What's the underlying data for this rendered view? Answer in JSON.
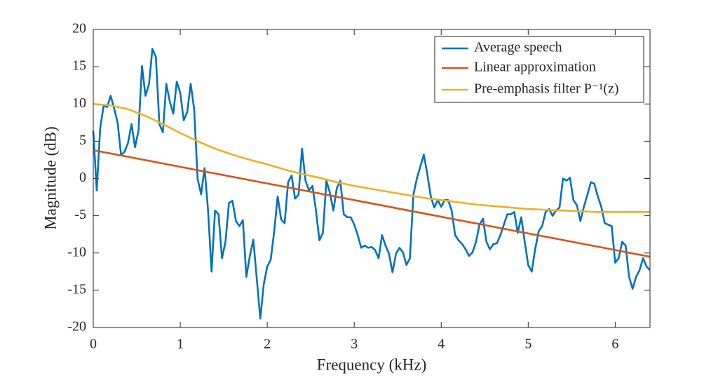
{
  "chart_data": {
    "type": "line",
    "xlabel": "Frequency (kHz)",
    "ylabel": "Magnitude (dB)",
    "xlim": [
      0,
      6.4
    ],
    "xticks": [
      0,
      1,
      2,
      3,
      4,
      5,
      6
    ],
    "ylim": [
      -20,
      20
    ],
    "yticks": [
      -20,
      -15,
      -10,
      -5,
      0,
      5,
      10,
      15,
      20
    ],
    "legend": "upper right",
    "series": [
      {
        "name": "Average speech",
        "color": "#0072bd",
        "x": [
          0,
          0.04,
          0.08,
          0.12,
          0.16,
          0.2,
          0.24,
          0.28,
          0.32,
          0.36,
          0.4,
          0.44,
          0.48,
          0.52,
          0.56,
          0.6,
          0.64,
          0.68,
          0.72,
          0.76,
          0.8,
          0.84,
          0.88,
          0.92,
          0.96,
          1,
          1.04,
          1.08,
          1.12,
          1.16,
          1.2,
          1.24,
          1.28,
          1.32,
          1.36,
          1.4,
          1.44,
          1.48,
          1.52,
          1.56,
          1.6,
          1.64,
          1.68,
          1.72,
          1.76,
          1.8,
          1.84,
          1.88,
          1.92,
          1.96,
          2,
          2.04,
          2.08,
          2.12,
          2.16,
          2.2,
          2.24,
          2.28,
          2.32,
          2.36,
          2.4,
          2.44,
          2.48,
          2.52,
          2.56,
          2.6,
          2.64,
          2.68,
          2.72,
          2.76,
          2.8,
          2.84,
          2.88,
          2.92,
          2.96,
          3,
          3.04,
          3.08,
          3.12,
          3.16,
          3.2,
          3.24,
          3.28,
          3.32,
          3.36,
          3.4,
          3.44,
          3.48,
          3.52,
          3.56,
          3.6,
          3.64,
          3.68,
          3.72,
          3.76,
          3.8,
          3.84,
          3.88,
          3.92,
          3.96,
          4,
          4.04,
          4.08,
          4.12,
          4.16,
          4.2,
          4.24,
          4.28,
          4.32,
          4.36,
          4.4,
          4.44,
          4.48,
          4.52,
          4.56,
          4.6,
          4.64,
          4.68,
          4.72,
          4.76,
          4.8,
          4.84,
          4.88,
          4.92,
          4.96,
          5,
          5.04,
          5.08,
          5.12,
          5.16,
          5.2,
          5.24,
          5.28,
          5.32,
          5.36,
          5.4,
          5.44,
          5.48,
          5.52,
          5.56,
          5.6,
          5.64,
          5.68,
          5.72,
          5.76,
          5.8,
          5.84,
          5.88,
          5.92,
          5.96,
          6,
          6.04,
          6.08,
          6.12,
          6.16,
          6.2,
          6.24,
          6.28,
          6.32,
          6.36,
          6.4
        ],
        "values": [
          6.4,
          -1.6,
          6.8,
          9.8,
          9.6,
          11.1,
          9.4,
          7.5,
          3.1,
          3.6,
          4.8,
          7.3,
          4.2,
          6.4,
          15.1,
          11.1,
          12.6,
          17.4,
          16.3,
          7.3,
          6.2,
          12.7,
          10.3,
          8.7,
          13.0,
          11.5,
          7.8,
          8.9,
          12.7,
          9.3,
          -0.1,
          -2.1,
          1.4,
          -4.3,
          -12.5,
          -4.3,
          -4.8,
          -10.7,
          -8.5,
          -3.3,
          -3.0,
          -5.7,
          -6.4,
          -5.6,
          -13.2,
          -10.4,
          -8.2,
          -13.5,
          -18.8,
          -14.2,
          -11.8,
          -10.9,
          -7.1,
          -2.4,
          -5.5,
          -6.0,
          -0.5,
          0.4,
          -2.7,
          -2.2,
          4.0,
          -0.3,
          -1.6,
          -1.0,
          -4.3,
          -8.3,
          -7.3,
          -0.3,
          -1.9,
          -4.3,
          -1.3,
          -0.3,
          -4.8,
          -5.2,
          -5.2,
          -6.2,
          -7.6,
          -9.3,
          -9.0,
          -9.3,
          -9.2,
          -9.6,
          -10.7,
          -7.6,
          -9.0,
          -10.1,
          -12.6,
          -10.1,
          -9.3,
          -9.9,
          -11.6,
          -10.7,
          -2.2,
          0.0,
          1.6,
          3.2,
          0.6,
          -2.4,
          -3.9,
          -2.9,
          -3.8,
          -2.9,
          -2.9,
          -4.3,
          -7.6,
          -8.3,
          -8.8,
          -9.5,
          -10.4,
          -9.9,
          -8.5,
          -6.2,
          -5.4,
          -8.5,
          -9.5,
          -8.8,
          -8.7,
          -7.6,
          -6.2,
          -4.8,
          -4.8,
          -4.5,
          -7.3,
          -5.2,
          -8.5,
          -11.6,
          -12.5,
          -9.5,
          -7.1,
          -6.4,
          -4.5,
          -4.1,
          -5.0,
          -4.3,
          -3.9,
          0.0,
          -0.3,
          0.1,
          -2.9,
          -3.6,
          -5.7,
          -3.8,
          -2.2,
          -0.5,
          -0.7,
          -2.4,
          -3.8,
          -6.0,
          -6.2,
          -6.4,
          -11.3,
          -10.7,
          -8.5,
          -9.0,
          -13.2,
          -14.8,
          -13.2,
          -12.3,
          -10.7,
          -11.8,
          -12.3
        ]
      },
      {
        "name": "Linear approximation",
        "color": "#d95319",
        "x": [
          0,
          6.4
        ],
        "values": [
          3.8,
          -10.5
        ]
      },
      {
        "name": "Pre-emphasis filter P⁻¹(z)",
        "color": "#edb120",
        "x": [
          0,
          0.2,
          0.4,
          0.6,
          0.8,
          1,
          1.2,
          1.4,
          1.6,
          1.8,
          2,
          2.2,
          2.4,
          2.6,
          2.8,
          3,
          3.2,
          3.4,
          3.6,
          3.8,
          4,
          4.2,
          4.4,
          4.6,
          4.8,
          5,
          5.2,
          5.4,
          5.6,
          5.8,
          6,
          6.2,
          6.4
        ],
        "values": [
          10,
          9.8,
          9.3,
          8.4,
          7.3,
          6.1,
          5.0,
          4.0,
          3.2,
          2.5,
          1.9,
          1.2,
          0.6,
          0.1,
          -0.5,
          -1.0,
          -1.4,
          -1.8,
          -2.2,
          -2.6,
          -2.9,
          -3.2,
          -3.5,
          -3.7,
          -3.9,
          -4.1,
          -4.2,
          -4.3,
          -4.4,
          -4.5,
          -4.5,
          -4.5,
          -4.5
        ]
      }
    ]
  }
}
